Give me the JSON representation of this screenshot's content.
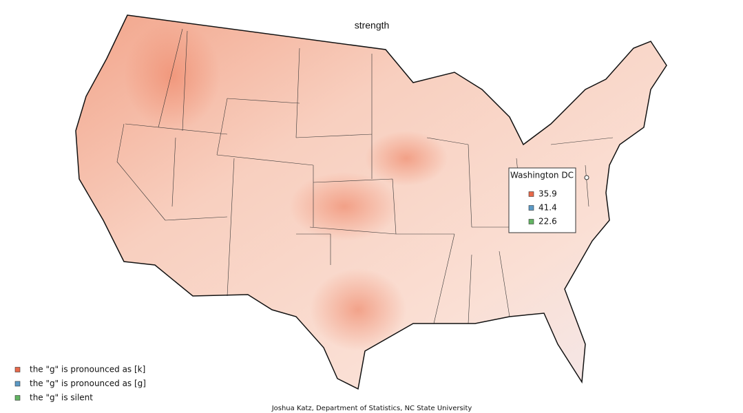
{
  "title": "strength",
  "tooltip": {
    "title": "Washington DC",
    "items": [
      {
        "color": "#e8694a",
        "value": 35.9
      },
      {
        "color": "#5b9ac6",
        "value": 41.4
      },
      {
        "color": "#62b462",
        "value": 22.6
      }
    ]
  },
  "legend": [
    {
      "color": "#e8694a",
      "label": "the \"g\" is pronounced as [k]"
    },
    {
      "color": "#5b9ac6",
      "label": "the \"g\" is pronounced as [g]"
    },
    {
      "color": "#62b462",
      "label": "the \"g\" is silent"
    }
  ],
  "credit": "Joshua Katz, Department of Statistics, NC State University"
}
